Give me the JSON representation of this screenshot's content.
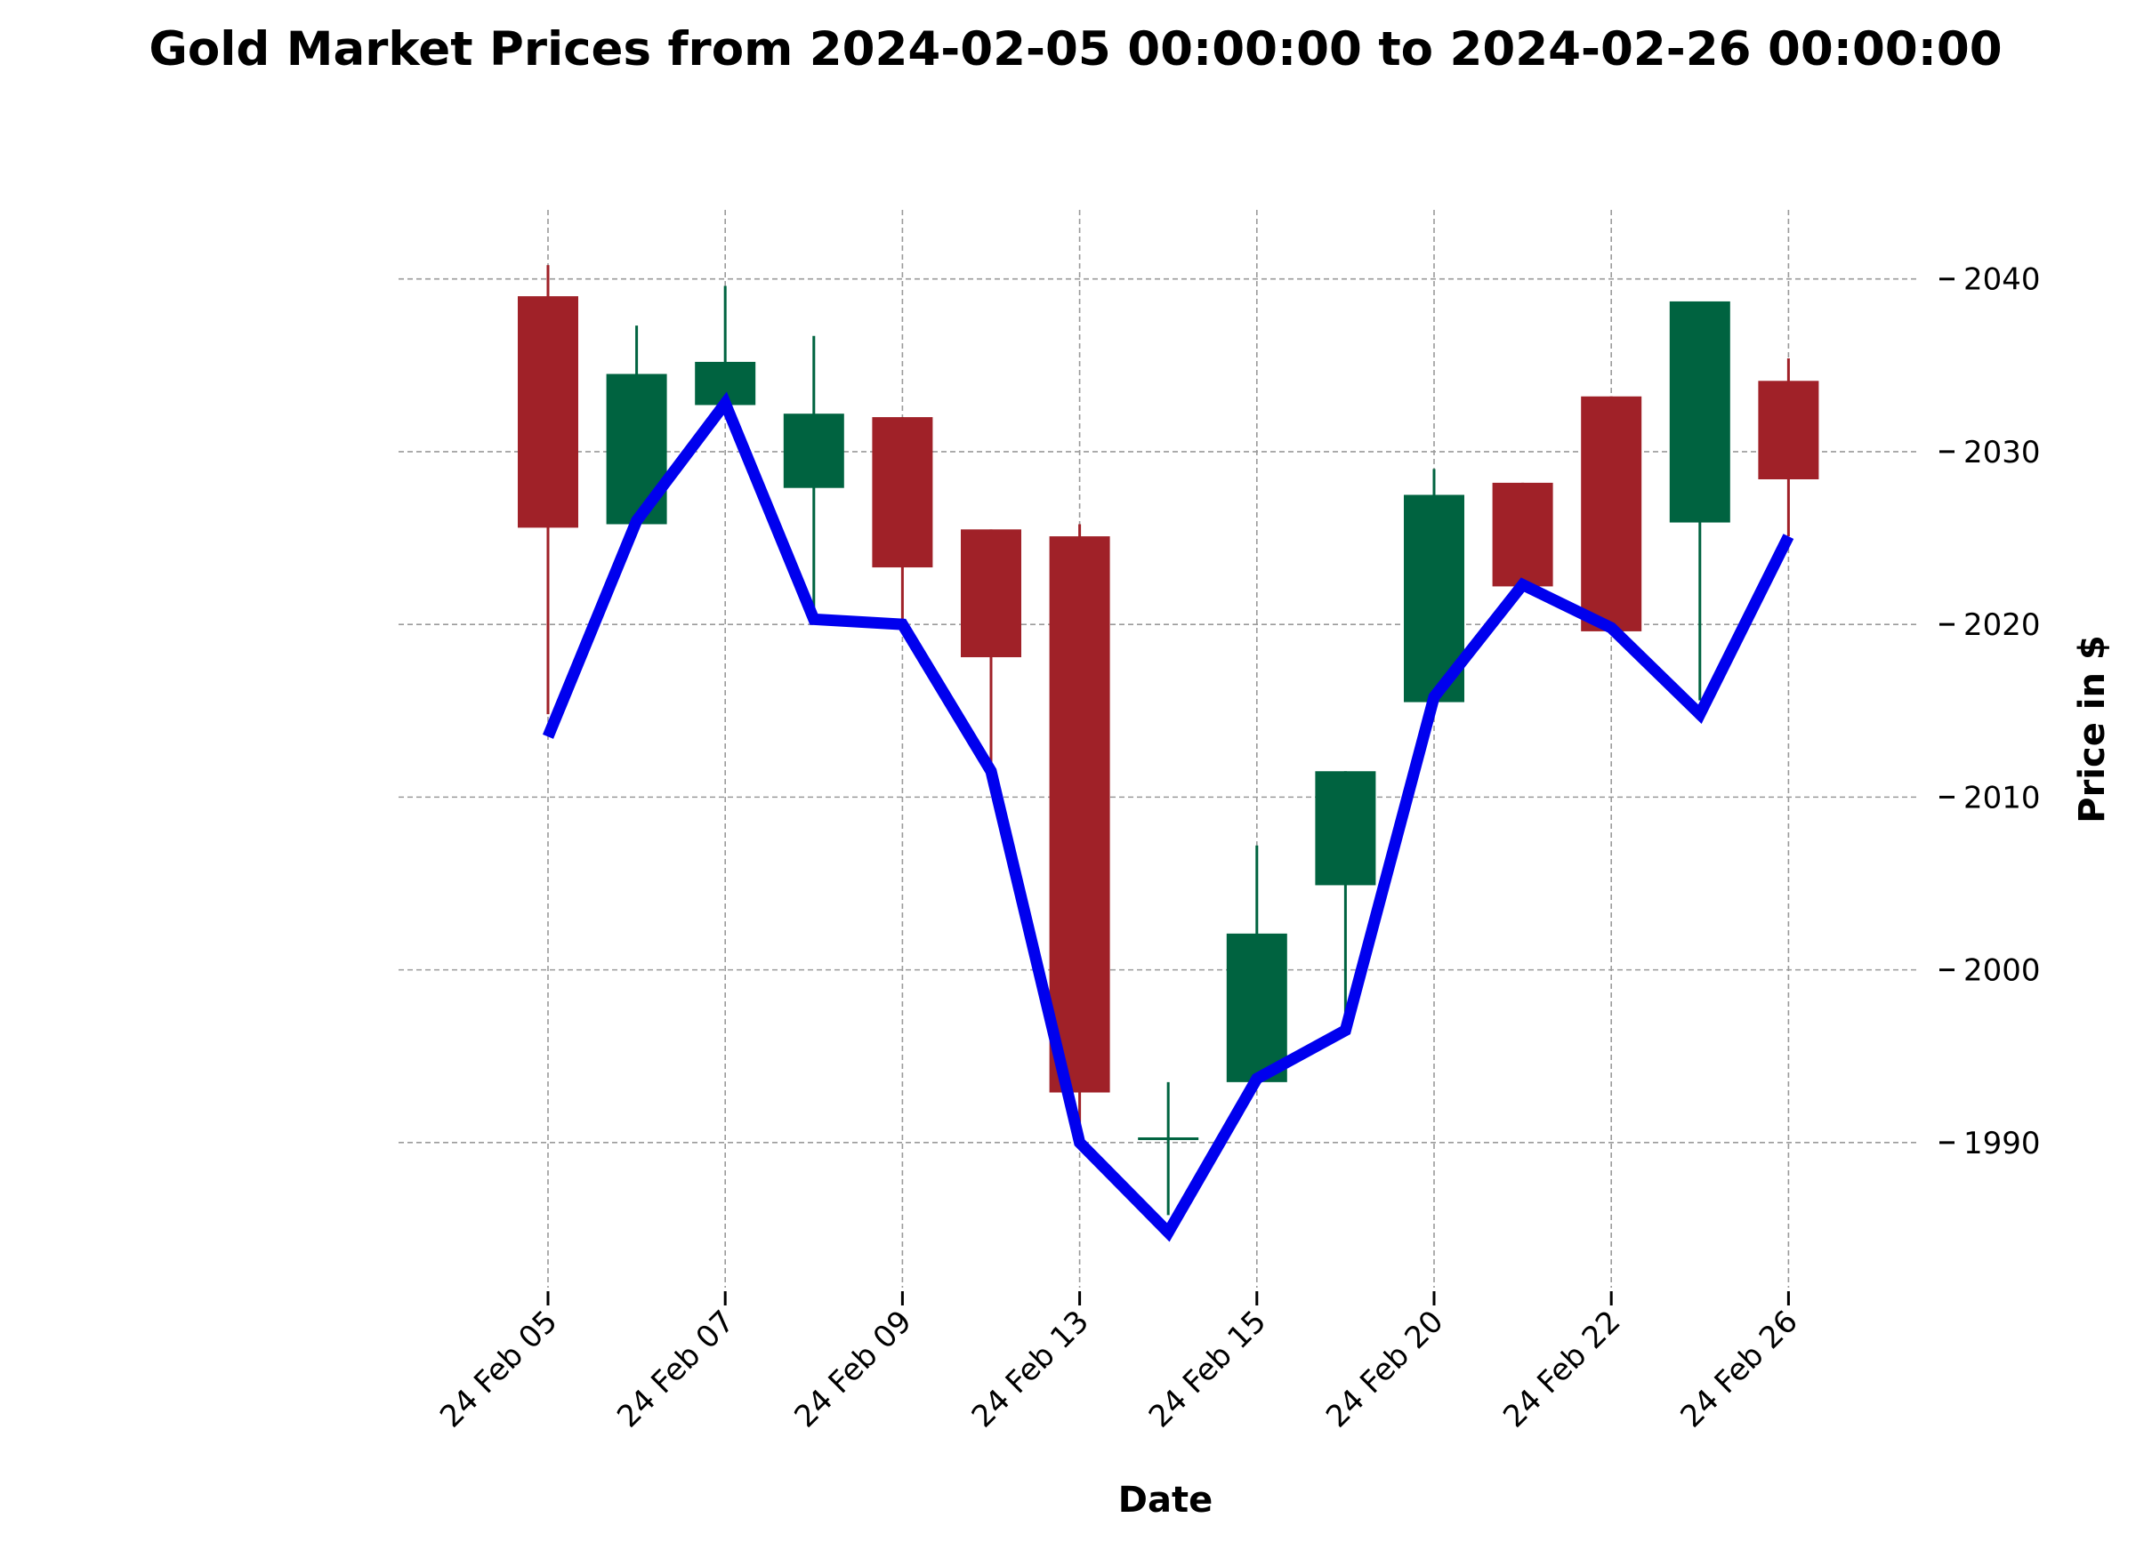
{
  "chart_data": {
    "type": "candlestick",
    "title": "Gold Market Prices from 2024-02-05 00:00:00 to 2024-02-26 00:00:00",
    "xlabel": "Date",
    "ylabel": "Price in $",
    "ylim": [
      1981.6,
      2044
    ],
    "yticks": [
      1990,
      2000,
      2010,
      2020,
      2030,
      2040
    ],
    "grid": true,
    "y_axis_side": "right",
    "x_tick_labels": [
      "24 Feb 05",
      "24 Feb 07",
      "24 Feb 09",
      "24 Feb 13",
      "24 Feb 15",
      "24 Feb 20",
      "24 Feb 22",
      "24 Feb 26"
    ],
    "x_tick_indices": [
      0,
      2,
      4,
      6,
      8,
      10,
      12,
      14
    ],
    "colors": {
      "up": "#006340",
      "down": "#a02128",
      "line": "#0000ee"
    },
    "candles": [
      {
        "date": "2024-02-05",
        "open": 2039.0,
        "high": 2040.8,
        "low": 2014.8,
        "close": 2025.6
      },
      {
        "date": "2024-02-06",
        "open": 2025.8,
        "high": 2037.3,
        "low": 2025.8,
        "close": 2034.5
      },
      {
        "date": "2024-02-07",
        "open": 2032.7,
        "high": 2039.6,
        "low": 2032.7,
        "close": 2035.2
      },
      {
        "date": "2024-02-08",
        "open": 2027.9,
        "high": 2036.7,
        "low": 2020.3,
        "close": 2032.2
      },
      {
        "date": "2024-02-09",
        "open": 2032.0,
        "high": 2032.0,
        "low": 2020.0,
        "close": 2023.3
      },
      {
        "date": "2024-02-12",
        "open": 2025.5,
        "high": 2025.5,
        "low": 2011.6,
        "close": 2018.1
      },
      {
        "date": "2024-02-13",
        "open": 2025.1,
        "high": 2025.8,
        "low": 1990.0,
        "close": 1992.9
      },
      {
        "date": "2024-02-14",
        "open": 1990.3,
        "high": 1993.5,
        "low": 1985.8,
        "close": 1990.3
      },
      {
        "date": "2024-02-15",
        "open": 1993.5,
        "high": 2007.2,
        "low": 1993.5,
        "close": 2002.1
      },
      {
        "date": "2024-02-16",
        "open": 2004.9,
        "high": 2011.5,
        "low": 1996.5,
        "close": 2011.5
      },
      {
        "date": "2024-02-20",
        "open": 2015.5,
        "high": 2029.0,
        "low": 2015.5,
        "close": 2027.5
      },
      {
        "date": "2024-02-21",
        "open": 2028.2,
        "high": 2028.2,
        "low": 2022.2,
        "close": 2022.2
      },
      {
        "date": "2024-02-22",
        "open": 2033.2,
        "high": 2033.2,
        "low": 2019.6,
        "close": 2019.6
      },
      {
        "date": "2024-02-23",
        "open": 2025.9,
        "high": 2038.7,
        "low": 2015.6,
        "close": 2038.7
      },
      {
        "date": "2024-02-26",
        "open": 2034.1,
        "high": 2035.4,
        "low": 2025.1,
        "close": 2028.4
      }
    ],
    "line_values": [
      2013.5,
      2026.0,
      2032.8,
      2020.3,
      2020.0,
      2011.5,
      1990.0,
      1984.8,
      1993.7,
      1996.5,
      2015.8,
      2022.3,
      2019.8,
      2014.8,
      2025.1
    ]
  }
}
